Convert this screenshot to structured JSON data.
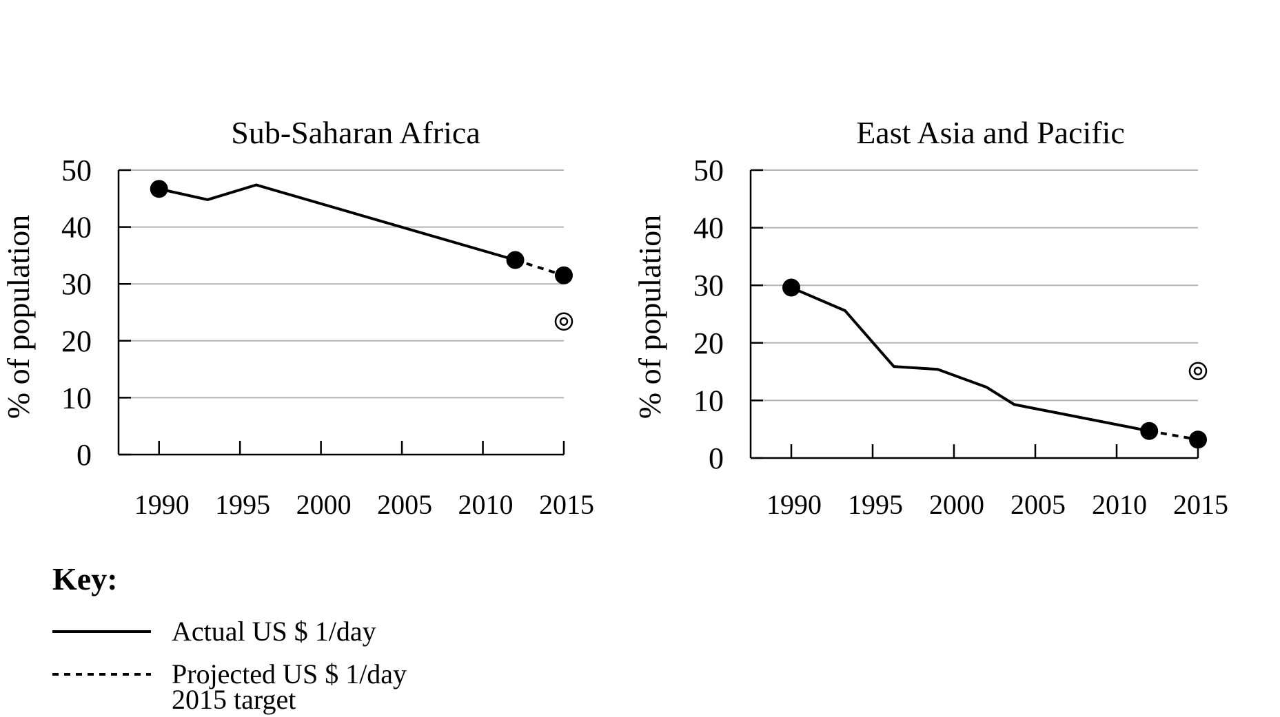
{
  "key": {
    "title": "Key:",
    "actual_label": "Actual US $ 1/day",
    "projected_label": "Projected US $ 1/day",
    "target_label": "2015 target"
  },
  "chart_data": [
    {
      "type": "line",
      "title": "Sub-Saharan Africa",
      "ylabel": "% of population",
      "xlabel": "",
      "xticks": [
        1990,
        1995,
        2000,
        2005,
        2010,
        2015
      ],
      "yticks": [
        0,
        10,
        20,
        30,
        40,
        50
      ],
      "xlim": [
        1987.5,
        2015
      ],
      "ylim": [
        0,
        50
      ],
      "grid": true,
      "series": [
        {
          "style": "actual",
          "x": [
            1990,
            1993,
            1996,
            2008,
            2012
          ],
          "y": [
            46.7,
            44.8,
            47.4,
            37.5,
            34.2
          ]
        },
        {
          "style": "projected",
          "x": [
            2012,
            2015
          ],
          "y": [
            34.2,
            31.5
          ]
        }
      ],
      "markers": [
        {
          "x": 1990,
          "y": 46.7
        },
        {
          "x": 2012,
          "y": 34.2
        },
        {
          "x": 2015,
          "y": 31.5
        }
      ],
      "target": {
        "x": 2015,
        "y": 23.4
      }
    },
    {
      "type": "line",
      "title": "East Asia and Pacific",
      "ylabel": "% of population",
      "xlabel": "",
      "xticks": [
        1990,
        1995,
        2000,
        2005,
        2010,
        2015
      ],
      "yticks": [
        0,
        10,
        20,
        30,
        40,
        50
      ],
      "xlim": [
        1987.5,
        2015
      ],
      "ylim": [
        0,
        50
      ],
      "grid": true,
      "series": [
        {
          "style": "actual",
          "x": [
            1990,
            1993.3,
            1996.3,
            1999,
            2002,
            2003.7,
            2012
          ],
          "y": [
            29.6,
            25.6,
            15.9,
            15.4,
            12.3,
            9.3,
            4.7
          ]
        },
        {
          "style": "projected",
          "x": [
            2012,
            2015
          ],
          "y": [
            4.7,
            3.2
          ]
        }
      ],
      "markers": [
        {
          "x": 1990,
          "y": 29.6
        },
        {
          "x": 2012,
          "y": 4.7
        },
        {
          "x": 2015,
          "y": 3.2
        }
      ],
      "target": {
        "x": 2015,
        "y": 15.1
      }
    }
  ]
}
